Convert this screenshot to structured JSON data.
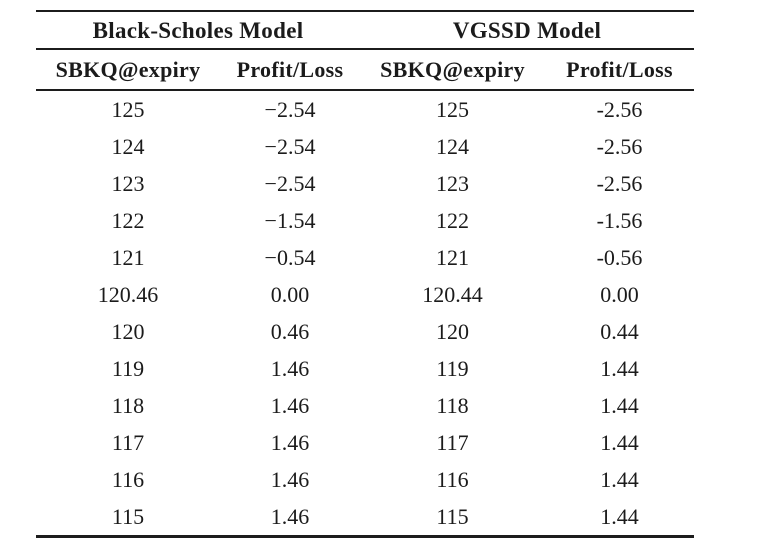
{
  "page": {
    "background_color": "#ffffff",
    "text_color": "#1b1b1b",
    "rule_color": "#1c1c1c"
  },
  "chart_data": {
    "type": "table",
    "group_headers": [
      "Black-Scholes Model",
      "VGSSD Model"
    ],
    "columns": [
      "SBKQ@expiry",
      "Profit/Loss",
      "SBKQ@expiry",
      "Profit/Loss"
    ],
    "rows": [
      [
        "125",
        "−2.54",
        "125",
        "-2.56"
      ],
      [
        "124",
        "−2.54",
        "124",
        "-2.56"
      ],
      [
        "123",
        "−2.54",
        "123",
        "-2.56"
      ],
      [
        "122",
        "−1.54",
        "122",
        "-1.56"
      ],
      [
        "121",
        "−0.54",
        "121",
        "-0.56"
      ],
      [
        "120.46",
        "0.00",
        "120.44",
        "0.00"
      ],
      [
        "120",
        "0.46",
        "120",
        "0.44"
      ],
      [
        "119",
        "1.46",
        "119",
        "1.44"
      ],
      [
        "118",
        "1.46",
        "118",
        "1.44"
      ],
      [
        "117",
        "1.46",
        "117",
        "1.44"
      ],
      [
        "116",
        "1.46",
        "116",
        "1.44"
      ],
      [
        "115",
        "1.46",
        "115",
        "1.44"
      ]
    ]
  }
}
